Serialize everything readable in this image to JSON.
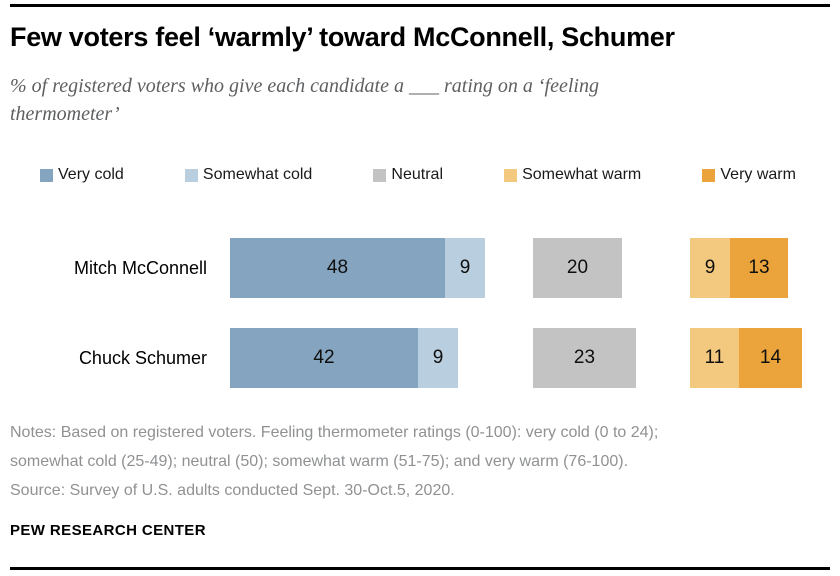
{
  "header": {
    "title": "Few voters feel ‘warmly’ toward McConnell, Schumer",
    "subtitle": "% of registered voters who give each candidate a ___ rating on a ‘feeling thermometer’"
  },
  "notes": {
    "lines": [
      "Notes: Based on registered voters. Feeling thermometer ratings (0-100): very cold (0 to 24);",
      "somewhat cold (25-49); neutral (50); somewhat warm (51-75); and very warm (76-100).",
      "Source: Survey of U.S. adults conducted Sept. 30-Oct.5, 2020."
    ]
  },
  "footer": {
    "brand": "PEW RESEARCH CENTER"
  },
  "colors": {
    "rule": "#000000",
    "subtitle_text": "#5d5f61",
    "notes_text": "#8f9193"
  },
  "chart_data": {
    "type": "bar",
    "orientation": "horizontal",
    "title": "Few voters feel ‘warmly’ toward McConnell, Schumer",
    "subtitle": "% of registered voters who give each candidate a ___ rating on a ‘feeling thermometer’",
    "categories": [
      "Mitch McConnell",
      "Chuck Schumer"
    ],
    "series": [
      {
        "name": "Very cold",
        "color": "#85a4bf",
        "values": [
          48,
          42
        ]
      },
      {
        "name": "Somewhat cold",
        "color": "#b9cede",
        "values": [
          9,
          9
        ]
      },
      {
        "name": "Neutral",
        "color": "#c3c3c3",
        "values": [
          20,
          23
        ]
      },
      {
        "name": "Somewhat warm",
        "color": "#f3c87f",
        "values": [
          9,
          11
        ]
      },
      {
        "name": "Very warm",
        "color": "#eba33b",
        "values": [
          13,
          14
        ]
      }
    ],
    "segment_groups": [
      [
        0,
        1
      ],
      [
        2
      ],
      [
        3,
        4
      ]
    ],
    "xlim": [
      0,
      100
    ],
    "value_labels": "inside",
    "legend_position": "top",
    "grid": false
  }
}
